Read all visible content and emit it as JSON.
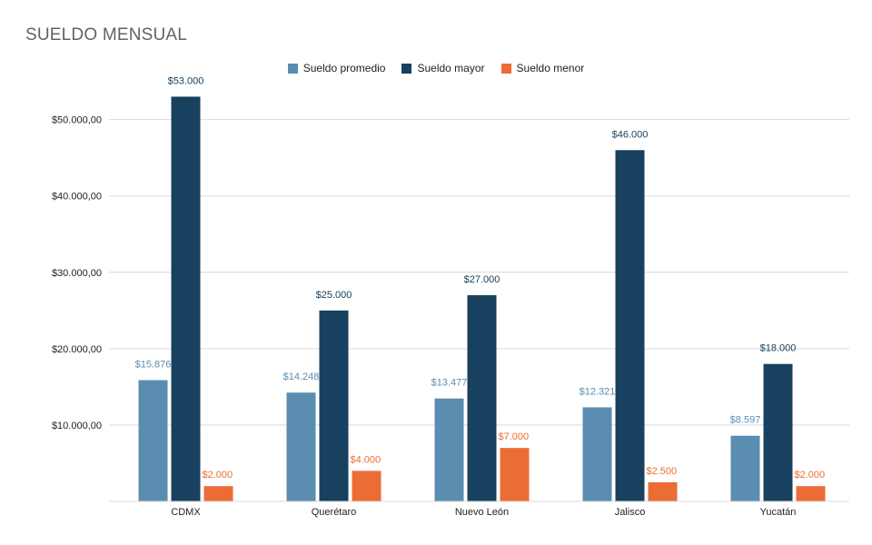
{
  "chart_data": {
    "type": "bar",
    "title": "SUELDO MENSUAL",
    "categories": [
      "CDMX",
      "Querétaro",
      "Nuevo León",
      "Jalisco",
      "Yucatán"
    ],
    "series": [
      {
        "name": "Sueldo promedio",
        "color": "#5b8db0",
        "values": [
          15876,
          14248,
          13477,
          12321,
          8597
        ],
        "labels": [
          "$15.876",
          "$14.248",
          "$13.477",
          "$12.321",
          "$8.597"
        ]
      },
      {
        "name": "Sueldo mayor",
        "color": "#17415e",
        "values": [
          53000,
          25000,
          27000,
          46000,
          18000
        ],
        "labels": [
          "$53.000",
          "$25.000",
          "$27.000",
          "$46.000",
          "$18.000"
        ]
      },
      {
        "name": "Sueldo menor",
        "color": "#ec6c35",
        "values": [
          2000,
          4000,
          7000,
          2500,
          2000
        ],
        "labels": [
          "$2.000",
          "$4.000",
          "$7.000",
          "$2.500",
          "$2.000"
        ]
      }
    ],
    "y_ticks": [
      {
        "value": 10000,
        "label": "$10.000,00"
      },
      {
        "value": 20000,
        "label": "$20.000,00"
      },
      {
        "value": 30000,
        "label": "$30.000,00"
      },
      {
        "value": 40000,
        "label": "$40.000,00"
      },
      {
        "value": 50000,
        "label": "$50.000,00"
      }
    ],
    "ylim": [
      0,
      56000
    ],
    "grid": true,
    "legend_position": "top-center"
  }
}
